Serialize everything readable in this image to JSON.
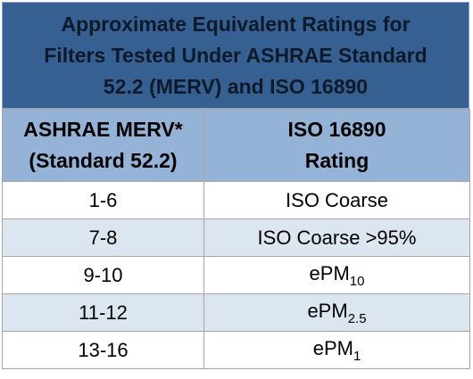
{
  "title_lines": [
    "Approximate Equivalent Ratings for",
    "Filters Tested Under ASHRAE Standard",
    "52.2 (MERV) and ISO 16890"
  ],
  "header": {
    "merv_lines": [
      "ASHRAE MERV*",
      "(Standard 52.2)"
    ],
    "iso_lines": [
      "ISO 16890",
      "Rating"
    ]
  },
  "rows": [
    {
      "merv": "1-6",
      "iso": "ISO Coarse"
    },
    {
      "merv": "7-8",
      "iso": "ISO Coarse >95%"
    },
    {
      "merv": "9-10",
      "iso": "ePM",
      "iso_sub": "10"
    },
    {
      "merv": "11-12",
      "iso": "ePM",
      "iso_sub": "2.5"
    },
    {
      "merv": "13-16",
      "iso": "ePM",
      "iso_sub": "1"
    }
  ]
}
